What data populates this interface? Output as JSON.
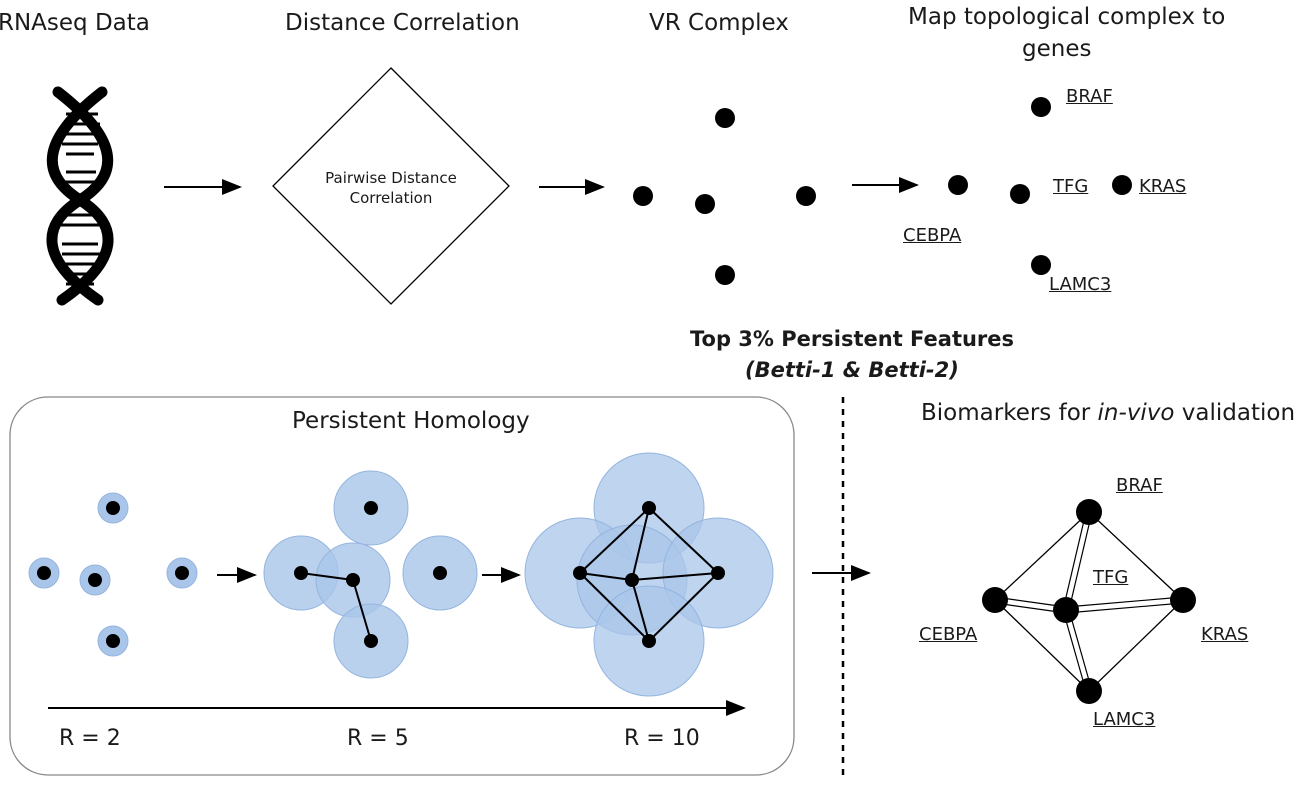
{
  "stages": {
    "rnaseq": "RNAseq Data",
    "distance": "Distance Correlation",
    "vr": "VR Complex",
    "map_line1": "Map topological complex to",
    "map_line2": "genes"
  },
  "distance_box": {
    "line1": "Pairwise Distance",
    "line2": "Correlation"
  },
  "map_genes": {
    "braf": "BRAF",
    "tfg": "TFG",
    "kras": "KRAS",
    "cebpa": "CEBPA",
    "lamc3": "LAMC3"
  },
  "features": {
    "line1": "Top 3% Persistent Features",
    "line2": "(Betti-1 & Betti-2)"
  },
  "homology": {
    "title": "Persistent Homology",
    "r_labels": [
      "R = 2",
      "R = 5",
      "R = 10"
    ]
  },
  "biomarkers": {
    "title_pre": "Biomarkers for ",
    "title_italic": "in-vivo",
    "title_post": " validation",
    "genes": {
      "braf": "BRAF",
      "tfg": "TFG",
      "kras": "KRAS",
      "cebpa": "CEBPA",
      "lamc3": "LAMC3"
    }
  },
  "colors": {
    "bubble": "#a9c6ea",
    "bubble_edge": "#94b5df",
    "node": "#000000"
  }
}
